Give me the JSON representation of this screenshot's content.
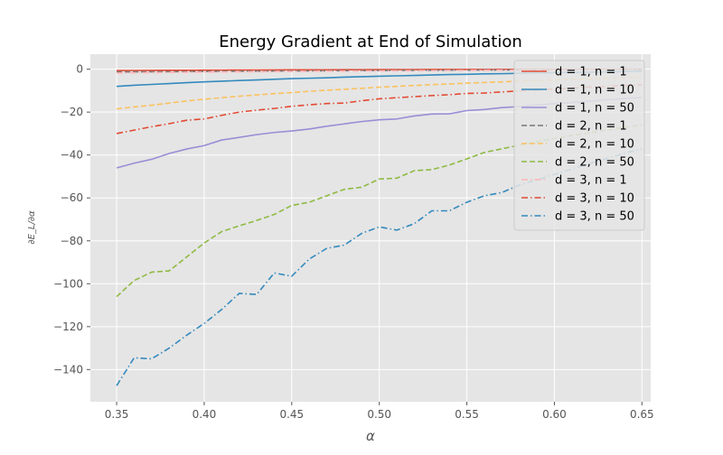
{
  "chart_data": {
    "type": "line",
    "title": "Energy Gradient at End of Simulation",
    "xlabel": "α",
    "ylabel": "∂E_L/∂α",
    "xlim": [
      0.335,
      0.655
    ],
    "ylim": [
      -155,
      7
    ],
    "xticks": [
      0.35,
      0.4,
      0.45,
      0.5,
      0.55,
      0.6,
      0.65
    ],
    "xtick_labels": [
      "0.35",
      "0.40",
      "0.45",
      "0.50",
      "0.55",
      "0.60",
      "0.65"
    ],
    "yticks": [
      0,
      -20,
      -40,
      -60,
      -80,
      -100,
      -120,
      -140
    ],
    "ytick_labels": [
      "0",
      "−20",
      "−40",
      "−60",
      "−80",
      "−100",
      "−120",
      "−140"
    ],
    "grid": true,
    "legend_position": "top-right",
    "x": [
      0.35,
      0.36,
      0.37,
      0.38,
      0.39,
      0.4,
      0.41,
      0.42,
      0.43,
      0.44,
      0.45,
      0.46,
      0.47,
      0.48,
      0.49,
      0.5,
      0.51,
      0.52,
      0.53,
      0.54,
      0.55,
      0.56,
      0.57,
      0.58,
      0.59,
      0.6,
      0.61,
      0.62,
      0.63,
      0.64,
      0.65
    ],
    "series": [
      {
        "name": "d = 1, n = 1",
        "color": "#E24A33",
        "dash": "solid",
        "values": [
          -0.6,
          -0.57,
          -0.54,
          -0.51,
          -0.48,
          -0.45,
          -0.42,
          -0.39,
          -0.36,
          -0.33,
          -0.3,
          -0.28,
          -0.26,
          -0.24,
          -0.22,
          -0.2,
          -0.18,
          -0.16,
          -0.14,
          -0.13,
          -0.12,
          -0.11,
          -0.1,
          -0.09,
          -0.08,
          -0.07,
          -0.06,
          -0.05,
          -0.04,
          -0.03,
          -0.02
        ]
      },
      {
        "name": "d = 1, n = 10",
        "color": "#348ABD",
        "dash": "solid",
        "values": [
          -8.0,
          -7.5,
          -7.1,
          -6.7,
          -6.3,
          -5.9,
          -5.6,
          -5.3,
          -5.0,
          -4.7,
          -4.4,
          -4.2,
          -4.0,
          -3.7,
          -3.5,
          -3.3,
          -3.1,
          -2.9,
          -2.7,
          -2.5,
          -2.4,
          -2.2,
          -2.1,
          -1.9,
          -1.8,
          -1.6,
          -1.5,
          -1.4,
          -1.3,
          -1.1,
          -1.0
        ]
      },
      {
        "name": "d = 1, n = 50",
        "color": "#988ED5",
        "dash": "solid",
        "values": [
          -46.0,
          -43.8,
          -42.0,
          -39.3,
          -37.2,
          -35.6,
          -33.0,
          -31.8,
          -30.5,
          -29.5,
          -28.8,
          -27.9,
          -26.6,
          -25.5,
          -24.4,
          -23.6,
          -23.2,
          -21.8,
          -20.9,
          -20.8,
          -19.3,
          -18.8,
          -17.9,
          -17.4,
          -16.7,
          -16.1,
          -15.5,
          -14.9,
          -14.3,
          -13.7,
          -13.2
        ]
      },
      {
        "name": "d = 2, n = 1",
        "color": "#777777",
        "dash": "dashed",
        "values": [
          -1.3,
          -1.25,
          -1.2,
          -1.15,
          -1.1,
          -1.05,
          -1.0,
          -0.95,
          -0.9,
          -0.86,
          -0.82,
          -0.78,
          -0.74,
          -0.7,
          -0.66,
          -0.62,
          -0.58,
          -0.54,
          -0.5,
          -0.47,
          -0.44,
          -0.41,
          -0.38,
          -0.35,
          -0.32,
          -0.29,
          -0.26,
          -0.23,
          -0.2,
          -0.18,
          -0.16
        ]
      },
      {
        "name": "d = 2, n = 10",
        "color": "#FBC15E",
        "dash": "dashed",
        "values": [
          -18.5,
          -17.6,
          -16.8,
          -15.8,
          -14.8,
          -14.0,
          -13.3,
          -12.6,
          -12.0,
          -11.4,
          -10.9,
          -10.3,
          -9.8,
          -9.4,
          -8.9,
          -8.4,
          -8.0,
          -7.6,
          -7.2,
          -6.9,
          -6.5,
          -6.2,
          -5.9,
          -5.6,
          -5.3,
          -5.0,
          -4.7,
          -4.5,
          -4.2,
          -4.0,
          -3.8
        ]
      },
      {
        "name": "d = 2, n = 50",
        "color": "#8EBA42",
        "dash": "dashed",
        "values": [
          -106.0,
          -98.5,
          -94.6,
          -94.0,
          -87.5,
          -81.0,
          -75.7,
          -73.0,
          -70.5,
          -67.7,
          -63.5,
          -62.0,
          -59.0,
          -56.0,
          -55.0,
          -51.2,
          -50.8,
          -47.3,
          -46.8,
          -44.7,
          -41.8,
          -38.8,
          -37.1,
          -35.4,
          -33.8,
          -32.3,
          -30.9,
          -29.6,
          -28.3,
          -27.1,
          -26.0
        ]
      },
      {
        "name": "d = 3, n = 1",
        "color": "#FFB5B8",
        "dash": "dashdot",
        "values": [
          -1.8,
          -1.7,
          -1.62,
          -1.54,
          -1.46,
          -1.39,
          -1.32,
          -1.25,
          -1.18,
          -1.12,
          -1.06,
          -1.0,
          -0.95,
          -0.9,
          -0.85,
          -0.8,
          -0.75,
          -0.7,
          -0.65,
          -0.61,
          -0.57,
          -0.53,
          -0.49,
          -0.45,
          -0.42,
          -0.39,
          -0.36,
          -0.33,
          -0.3,
          -0.27,
          -0.25
        ]
      },
      {
        "name": "d = 3, n = 10",
        "color": "#E24A33",
        "dash": "dashdot",
        "values": [
          -30.0,
          -28.4,
          -26.8,
          -25.4,
          -23.8,
          -23.2,
          -21.5,
          -20.0,
          -19.1,
          -18.3,
          -17.3,
          -16.6,
          -16.0,
          -15.8,
          -14.7,
          -13.8,
          -13.3,
          -12.8,
          -12.3,
          -11.9,
          -11.3,
          -11.1,
          -10.6,
          -10.1,
          -9.7,
          -9.2,
          -8.8,
          -8.4,
          -8.0,
          -7.6,
          -7.3
        ]
      },
      {
        "name": "d = 3, n = 50",
        "color": "#348ABD",
        "dash": "dashdot",
        "values": [
          -147.5,
          -134.5,
          -135.0,
          -130.0,
          -124.0,
          -118.5,
          -112.0,
          -104.5,
          -105.0,
          -95.0,
          -96.5,
          -88.5,
          -83.5,
          -82.0,
          -76.5,
          -73.5,
          -75.0,
          -72.0,
          -66.0,
          -66.0,
          -62.0,
          -59.0,
          -57.5,
          -54.0,
          -51.6,
          -49.0,
          -46.5,
          -44.0,
          -41.6,
          -39.2,
          -37.0
        ]
      }
    ]
  }
}
